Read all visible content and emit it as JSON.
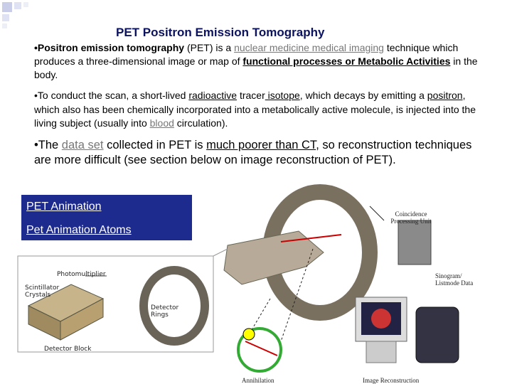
{
  "title": "PET Positron Emission Tomography",
  "paragraphs": [
    [
      "•Positron emission tomography ",
      "(PET) is a ",
      "nuclear medicine medical imaging",
      " technique which produces a three-dimensional image or map of ",
      "functional processes or Metabolic Activities",
      " in the body."
    ],
    [
      "•To conduct the scan, a short-lived ",
      "radioactive",
      " tracer",
      " isotope",
      ", which decays by emitting a ",
      " positron",
      ", which also has been chemically incorporated into a metabolically active molecule, is injected into the living subject (usually into ",
      "blood",
      " circulation)."
    ],
    [
      "•The ",
      "data set",
      " collected in PET is ",
      "much poorer than CT",
      ", so reconstruction techniques are more difficult (see section below on image reconstruction of PET)."
    ]
  ],
  "links": [
    "PET Animation",
    "Pet Animation Atoms"
  ],
  "figure_labels": {
    "photomultiplier": "Photomultiplier",
    "scintillator": "Scintillator Crystals",
    "detector_rings": "Detector Rings",
    "detector_block": "Detector Block",
    "coincidence": "Coincidence Processing Unit",
    "sinogram": "Sinogram/ Listmode Data",
    "annihilation": "Annihilation",
    "reconstruction": "Image Reconstruction"
  }
}
